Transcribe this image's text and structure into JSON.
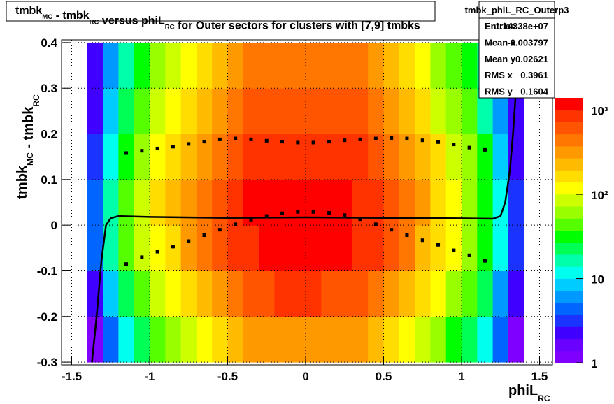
{
  "chart_data": {
    "type": "heatmap",
    "title": [
      {
        "text": "tmbk",
        "sub": "MC"
      },
      {
        "text": " - tmbk",
        "sub": "RC"
      },
      {
        "text": " versus phiL",
        "sub": "RC"
      },
      {
        "text": " for Outer sectors for clusters with [7,9] tmbks"
      }
    ],
    "xlabel": [
      {
        "text": "phiL",
        "sub": "RC"
      }
    ],
    "ylabel": [
      {
        "text": "tmbk",
        "sub": "MC"
      },
      {
        "text": " - tmbk",
        "sub": "RC"
      }
    ],
    "xlim": [
      -1.565,
      1.583
    ],
    "ylim": [
      -0.306,
      0.406
    ],
    "xticks": [
      -1.5,
      -1,
      -0.5,
      0,
      0.5,
      1,
      1.5
    ],
    "yticks": [
      -0.3,
      -0.2,
      -0.1,
      0,
      0.1,
      0.2,
      0.3,
      0.4
    ],
    "grid": true,
    "zlim": [
      1,
      1400
    ],
    "zlog": true,
    "zticks": [
      1,
      10,
      {
        "value": 100,
        "label": "10²"
      },
      {
        "value": 1000,
        "label": "10³"
      }
    ],
    "palette": [
      "#8000ff",
      "#6a00ff",
      "#4000ff",
      "#1a33ff",
      "#0066ff",
      "#0099ff",
      "#00ccff",
      "#00ffee",
      "#00ffaa",
      "#00ff55",
      "#00ff00",
      "#55ff00",
      "#99ff00",
      "#ccff00",
      "#ffff00",
      "#ffdd00",
      "#ffbb00",
      "#ff9900",
      "#ff7700",
      "#ff5500",
      "#ff3300",
      "#ff0000"
    ],
    "xbins": [
      -1.4,
      -1.3,
      -1.2,
      -1.1,
      -1.0,
      -0.9,
      -0.8,
      -0.7,
      -0.6,
      -0.5,
      -0.4,
      -0.3,
      -0.2,
      -0.1,
      0,
      0.1,
      0.2,
      0.3,
      0.4,
      0.5,
      0.6,
      0.7,
      0.8,
      0.9,
      1.0,
      1.1,
      1.2,
      1.3,
      1.4
    ],
    "ybins": [
      -0.3,
      -0.2,
      -0.1,
      0,
      0.1,
      0.2,
      0.3,
      0.4
    ],
    "z": [
      [
        1,
        5,
        12,
        24,
        42,
        60,
        90,
        126,
        180,
        255,
        315,
        360,
        375,
        375,
        375,
        360,
        345,
        300,
        240,
        174,
        120,
        84,
        54,
        36,
        21,
        11,
        4,
        1
      ],
      [
        2,
        9,
        24,
        48,
        84,
        120,
        180,
        252,
        360,
        510,
        630,
        720,
        750,
        750,
        750,
        720,
        690,
        600,
        480,
        348,
        240,
        168,
        108,
        72,
        42,
        21,
        7,
        2
      ],
      [
        4,
        14,
        38,
        76,
        133,
        190,
        285,
        399,
        570,
        808,
        998,
        1140,
        1188,
        1188,
        1188,
        1140,
        1093,
        950,
        760,
        551,
        380,
        266,
        171,
        114,
        67,
        33,
        11,
        3
      ],
      [
        4,
        15,
        40,
        80,
        140,
        200,
        300,
        420,
        600,
        850,
        1050,
        1200,
        1250,
        1250,
        1250,
        1200,
        1150,
        1000,
        800,
        580,
        400,
        280,
        180,
        120,
        70,
        35,
        12,
        3
      ],
      [
        3,
        12,
        32,
        64,
        112,
        160,
        240,
        336,
        480,
        680,
        840,
        960,
        1000,
        1000,
        1000,
        960,
        920,
        800,
        640,
        464,
        320,
        224,
        144,
        96,
        56,
        28,
        10,
        2
      ],
      [
        2,
        8,
        22,
        44,
        77,
        110,
        165,
        231,
        330,
        468,
        578,
        660,
        688,
        688,
        688,
        660,
        633,
        550,
        440,
        319,
        220,
        154,
        99,
        66,
        39,
        19,
        7,
        2
      ],
      [
        2,
        6,
        16,
        32,
        56,
        80,
        120,
        168,
        240,
        340,
        420,
        480,
        500,
        500,
        500,
        480,
        460,
        400,
        320,
        232,
        160,
        112,
        72,
        48,
        28,
        14,
        5,
        1
      ]
    ],
    "series": [
      {
        "kind": "points",
        "color": "#000000",
        "x": [
          -1.15,
          -1.05,
          -0.95,
          -0.85,
          -0.75,
          -0.65,
          -0.55,
          -0.45,
          -0.35,
          -0.25,
          -0.15,
          -0.05,
          0.05,
          0.15,
          0.25,
          0.35,
          0.45,
          0.55,
          0.65,
          0.75,
          0.85,
          0.95,
          1.05,
          1.15
        ],
        "values": [
          0.158,
          0.163,
          0.168,
          0.172,
          0.178,
          0.183,
          0.188,
          0.19,
          0.188,
          0.185,
          0.183,
          0.181,
          0.181,
          0.183,
          0.186,
          0.188,
          0.19,
          0.191,
          0.19,
          0.186,
          0.182,
          0.177,
          0.17,
          0.165
        ]
      },
      {
        "kind": "points",
        "color": "#000000",
        "x": [
          -1.15,
          -1.05,
          -0.95,
          -0.85,
          -0.75,
          -0.65,
          -0.55,
          -0.45,
          -0.35,
          -0.25,
          -0.15,
          -0.05,
          0.05,
          0.15,
          0.25,
          0.35,
          0.45,
          0.55,
          0.65,
          0.75,
          0.85,
          0.95,
          1.05,
          1.15
        ],
        "values": [
          -0.085,
          -0.07,
          -0.058,
          -0.047,
          -0.035,
          -0.022,
          -0.01,
          0.002,
          0.012,
          0.02,
          0.026,
          0.029,
          0.029,
          0.027,
          0.022,
          0.013,
          0.002,
          -0.01,
          -0.022,
          -0.033,
          -0.043,
          -0.055,
          -0.066,
          -0.078
        ]
      },
      {
        "kind": "line",
        "color": "#000000",
        "x": [
          -1.37,
          -1.34,
          -1.31,
          -1.28,
          -1.25,
          -1.2,
          -1,
          -0.5,
          0,
          0.5,
          1,
          1.2,
          1.25,
          1.28,
          1.31,
          1.33,
          1.35,
          1.365
        ],
        "values": [
          -0.3,
          -0.2,
          -0.08,
          0,
          0.015,
          0.02,
          0.018,
          0.016,
          0.017,
          0.016,
          0.015,
          0.014,
          0.02,
          0.05,
          0.12,
          0.2,
          0.3,
          0.4
        ]
      }
    ],
    "stats": {
      "title": "tmbk_phiL_RC_Outerp3",
      "rows": [
        {
          "name": "Entries",
          "value": "1.14338e+07"
        },
        {
          "name": "Mean x",
          "value": "-0.003797"
        },
        {
          "name": "Mean y",
          "value": "0.02621"
        },
        {
          "name": "RMS x",
          "value": "0.3961"
        },
        {
          "name": "RMS y",
          "value": "0.1604"
        }
      ]
    }
  }
}
